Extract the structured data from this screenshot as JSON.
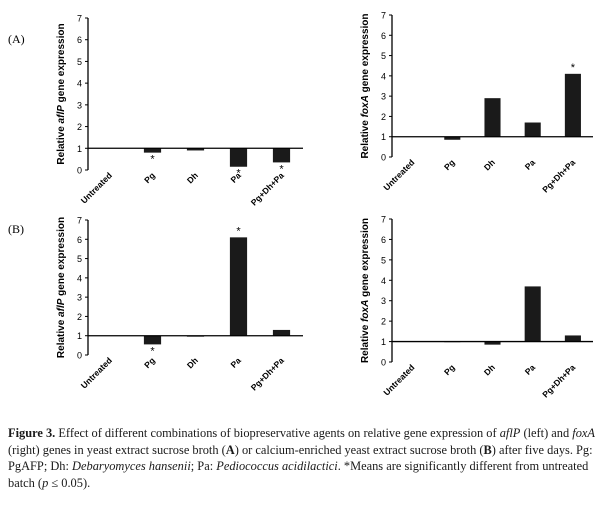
{
  "panels": {
    "A": "(A)",
    "B": "(B)"
  },
  "caption": {
    "label": "Figure 3.",
    "t1": " Effect of different combinations of biopreservative agents on relative gene expression of ",
    "gene1": "aflP",
    "t2": " (left) and ",
    "gene2": "foxA",
    "t3": " (right) genes in yeast extract sucrose broth (",
    "bA": "A",
    "t4": ") or calcium-enriched yeast extract sucrose broth (",
    "bB": "B",
    "t5": ") after five days. Pg: PgAFP; Dh: ",
    "sp1": "Debaryomyces hansenii",
    "t6": "; Pa: ",
    "sp2": "Pediococcus acidilactici",
    "t7": ". *Means are significantly different from untreated batch (",
    "p": "p",
    "t8": " ≤ 0.05)."
  },
  "chart_data": [
    {
      "type": "bar",
      "panel": "A",
      "ylabel_prefix": "Relative ",
      "ylabel_gene": "aflP",
      "ylabel_suffix": " gene expression",
      "categories": [
        "Untreated",
        "Pg",
        "Dh",
        "Pa",
        "Pg+Dh+Pa"
      ],
      "values": [
        1.0,
        0.8,
        0.9,
        0.15,
        0.35
      ],
      "significant": [
        false,
        true,
        false,
        true,
        true
      ],
      "ylim": [
        0,
        7
      ],
      "yticks": [
        "0",
        "1",
        "2",
        "3",
        "4",
        "5",
        "6",
        "7"
      ],
      "baseline": 1
    },
    {
      "type": "bar",
      "panel": "A",
      "ylabel_prefix": "Relative ",
      "ylabel_gene": "foxA",
      "ylabel_suffix": " gene expression",
      "categories": [
        "Untreated",
        "Pg",
        "Dh",
        "Pa",
        "Pg+Dh+Pa"
      ],
      "values": [
        1.0,
        0.85,
        2.9,
        1.7,
        4.1
      ],
      "significant": [
        false,
        false,
        false,
        false,
        true
      ],
      "ylim": [
        0,
        7
      ],
      "yticks": [
        "0",
        "1",
        "2",
        "3",
        "4",
        "5",
        "6",
        "7"
      ],
      "baseline": 1
    },
    {
      "type": "bar",
      "panel": "B",
      "ylabel_prefix": "Relative ",
      "ylabel_gene": "aflP",
      "ylabel_suffix": " gene expression",
      "categories": [
        "Untreated",
        "Pg",
        "Dh",
        "Pa",
        "Pg+Dh+Pa"
      ],
      "values": [
        1.0,
        0.55,
        0.95,
        6.1,
        1.3
      ],
      "significant": [
        false,
        true,
        false,
        true,
        false
      ],
      "ylim": [
        0,
        7
      ],
      "yticks": [
        "0",
        "1",
        "2",
        "3",
        "4",
        "5",
        "6",
        "7"
      ],
      "baseline": 1
    },
    {
      "type": "bar",
      "panel": "B",
      "ylabel_prefix": "Relative ",
      "ylabel_gene": "foxA",
      "ylabel_suffix": " gene expression",
      "categories": [
        "Untreated",
        "Pg",
        "Dh",
        "Pa",
        "Pg+Dh+Pa"
      ],
      "values": [
        1.0,
        0.98,
        0.85,
        3.7,
        1.3
      ],
      "significant": [
        false,
        false,
        false,
        false,
        false
      ],
      "ylim": [
        0,
        7
      ],
      "yticks": [
        "0",
        "1",
        "2",
        "3",
        "4",
        "5",
        "6",
        "7"
      ],
      "baseline": 1
    }
  ]
}
